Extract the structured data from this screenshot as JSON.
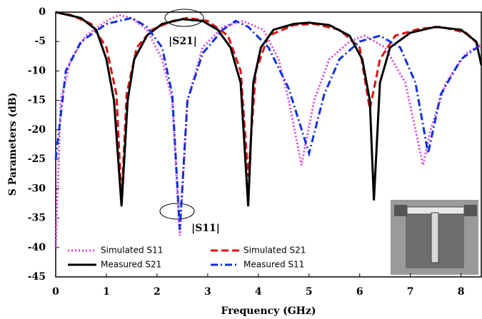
{
  "chart_data": {
    "type": "line",
    "x_label": "Frequency (GHz)",
    "y_label": "S Parameters (dB)",
    "xlim": [
      0,
      8.4
    ],
    "ylim": [
      -45,
      0
    ],
    "xticks": [
      0,
      1,
      2,
      3,
      4,
      5,
      6,
      7,
      8
    ],
    "yticks": [
      0,
      -5,
      -10,
      -15,
      -20,
      -25,
      -30,
      -35,
      -40,
      -45
    ],
    "annotations": [
      "|S21|",
      "|S11|"
    ],
    "series": [
      {
        "name": "Simulated S11",
        "color": "#e040e0",
        "style": "dotted",
        "x": [
          0,
          0.1,
          0.3,
          0.6,
          1.0,
          1.25,
          1.5,
          1.8,
          2.1,
          2.3,
          2.45,
          2.6,
          2.9,
          3.3,
          3.7,
          4.1,
          4.4,
          4.6,
          4.85,
          5.1,
          5.4,
          5.8,
          6.1,
          6.5,
          6.9,
          7.1,
          7.25,
          7.4,
          7.7,
          8.1,
          8.4
        ],
        "values": [
          -40,
          -15,
          -8,
          -4,
          -1.5,
          -0.5,
          -1,
          -3,
          -8,
          -15,
          -38,
          -15,
          -6,
          -2.5,
          -1.5,
          -3,
          -8,
          -15,
          -26,
          -15,
          -8,
          -5,
          -4,
          -6,
          -12,
          -20,
          -26,
          -20,
          -12,
          -7,
          -5.5
        ]
      },
      {
        "name": "Simulated S21",
        "color": "#e01010",
        "style": "dashed",
        "x": [
          0,
          0.3,
          0.7,
          1.0,
          1.2,
          1.3,
          1.4,
          1.6,
          1.9,
          2.3,
          2.6,
          3.0,
          3.4,
          3.65,
          3.8,
          3.95,
          4.2,
          4.7,
          5.1,
          5.6,
          6.0,
          6.2,
          6.4,
          6.7,
          7.2,
          7.6,
          8.1,
          8.4
        ],
        "values": [
          0,
          -0.5,
          -2,
          -6,
          -14,
          -32,
          -14,
          -6,
          -3,
          -1.5,
          -1,
          -1.5,
          -4,
          -10,
          -28,
          -10,
          -4,
          -2.2,
          -2,
          -3,
          -6,
          -16.5,
          -8,
          -4,
          -2.8,
          -2.5,
          -3.5,
          -6
        ]
      },
      {
        "name": "Measured S21",
        "color": "#000000",
        "style": "solid",
        "x": [
          0,
          0.5,
          0.8,
          1.0,
          1.15,
          1.3,
          1.42,
          1.55,
          1.8,
          2.1,
          2.5,
          2.9,
          3.2,
          3.45,
          3.65,
          3.8,
          3.9,
          4.05,
          4.3,
          4.7,
          5.0,
          5.4,
          5.8,
          6.05,
          6.2,
          6.28,
          6.4,
          6.6,
          7.0,
          7.5,
          8.0,
          8.3,
          8.4
        ],
        "values": [
          0,
          -1,
          -3,
          -8,
          -15,
          -33,
          -15,
          -8,
          -4,
          -2,
          -1.2,
          -1.5,
          -3,
          -6,
          -12,
          -33,
          -12,
          -6,
          -3,
          -2,
          -1.8,
          -2.2,
          -4,
          -8,
          -15,
          -32,
          -12,
          -6,
          -3.5,
          -2.5,
          -3,
          -5,
          -9
        ]
      },
      {
        "name": "Measured S11",
        "color": "#1030e0",
        "style": "dashdot",
        "x": [
          0,
          0.2,
          0.5,
          1.0,
          1.5,
          1.8,
          2.1,
          2.3,
          2.45,
          2.6,
          2.9,
          3.3,
          3.55,
          3.8,
          4.2,
          4.6,
          5.0,
          5.3,
          5.6,
          6.0,
          6.4,
          6.8,
          7.1,
          7.35,
          7.6,
          8.0,
          8.4
        ],
        "values": [
          -25,
          -10,
          -5,
          -2,
          -1,
          -2.5,
          -6,
          -14,
          -37,
          -15,
          -7,
          -3,
          -1.5,
          -2.5,
          -6,
          -13,
          -24,
          -14,
          -8,
          -5,
          -4,
          -6,
          -12,
          -24,
          -14,
          -8,
          -5.5
        ]
      }
    ]
  }
}
